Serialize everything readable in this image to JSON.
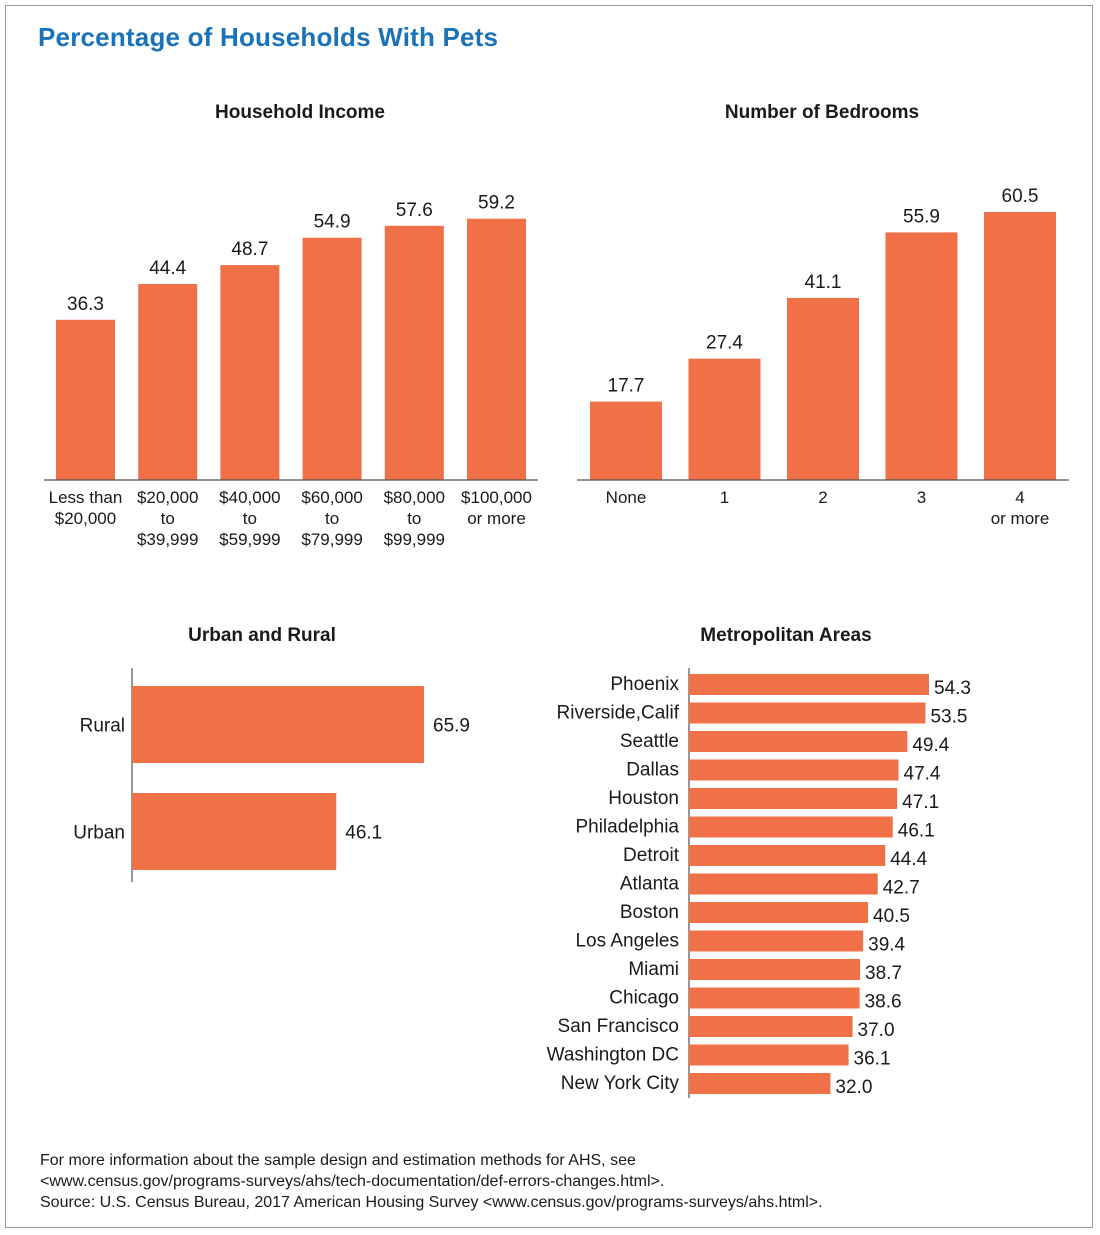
{
  "title": "Percentage of Households With Pets",
  "colors": {
    "bar": "#f07048",
    "axis": "#555555",
    "title": "#1a72b8"
  },
  "footer": {
    "line1": "For more information about the sample design and estimation methods for AHS, see",
    "line2": "<www.census.gov/programs-surveys/ahs/tech-documentation/def-errors-changes.html>.",
    "line3": "Source: U.S. Census Bureau, 2017 American Housing Survey <www.census.gov/programs-surveys/ahs.html>."
  },
  "chart_data": [
    {
      "id": "income",
      "type": "bar",
      "orientation": "vertical",
      "title": "Household Income",
      "categories": [
        [
          "Less than",
          "$20,000"
        ],
        [
          "$20,000",
          "to",
          "$39,999"
        ],
        [
          "$40,000",
          "to",
          "$59,999"
        ],
        [
          "$60,000",
          "to",
          "$79,999"
        ],
        [
          "$80,000",
          "to",
          "$99,999"
        ],
        [
          "$100,000",
          "or more"
        ]
      ],
      "values": [
        36.3,
        44.4,
        48.7,
        54.9,
        57.6,
        59.2
      ],
      "value_labels": [
        "36.3",
        "44.4",
        "48.7",
        "54.9",
        "57.6",
        "59.2"
      ],
      "ylim": [
        0,
        60.5
      ]
    },
    {
      "id": "bedrooms",
      "type": "bar",
      "orientation": "vertical",
      "title": "Number of Bedrooms",
      "categories": [
        [
          "None"
        ],
        [
          "1"
        ],
        [
          "2"
        ],
        [
          "3"
        ],
        [
          "4",
          "or more"
        ]
      ],
      "values": [
        17.7,
        27.4,
        41.1,
        55.9,
        60.5
      ],
      "value_labels": [
        "17.7",
        "27.4",
        "41.1",
        "55.9",
        "60.5"
      ],
      "ylim": [
        0,
        60.5
      ]
    },
    {
      "id": "urban",
      "type": "bar",
      "orientation": "horizontal",
      "title": "Urban and Rural",
      "categories": [
        "Rural",
        "Urban"
      ],
      "values": [
        65.9,
        46.1
      ],
      "value_labels": [
        "65.9",
        "46.1"
      ],
      "xlim": [
        0,
        65.9
      ]
    },
    {
      "id": "metro",
      "type": "bar",
      "orientation": "horizontal",
      "title": "Metropolitan Areas",
      "categories": [
        "Phoenix",
        "Riverside,Calif",
        "Seattle",
        "Dallas",
        "Houston",
        "Philadelphia",
        "Detroit",
        "Atlanta",
        "Boston",
        "Los Angeles",
        "Miami",
        "Chicago",
        "San Francisco",
        "Washington DC",
        "New York City"
      ],
      "values": [
        54.3,
        53.5,
        49.4,
        47.4,
        47.1,
        46.1,
        44.4,
        42.7,
        40.5,
        39.4,
        38.7,
        38.6,
        37.0,
        36.1,
        32.0
      ],
      "value_labels": [
        "54.3",
        "53.5",
        "49.4",
        "47.4",
        "47.1",
        "46.1",
        "44.4",
        "42.7",
        "40.5",
        "39.4",
        "38.7",
        "38.6",
        "37.0",
        "36.1",
        "32.0"
      ],
      "xlim": [
        0,
        54.3
      ]
    }
  ]
}
